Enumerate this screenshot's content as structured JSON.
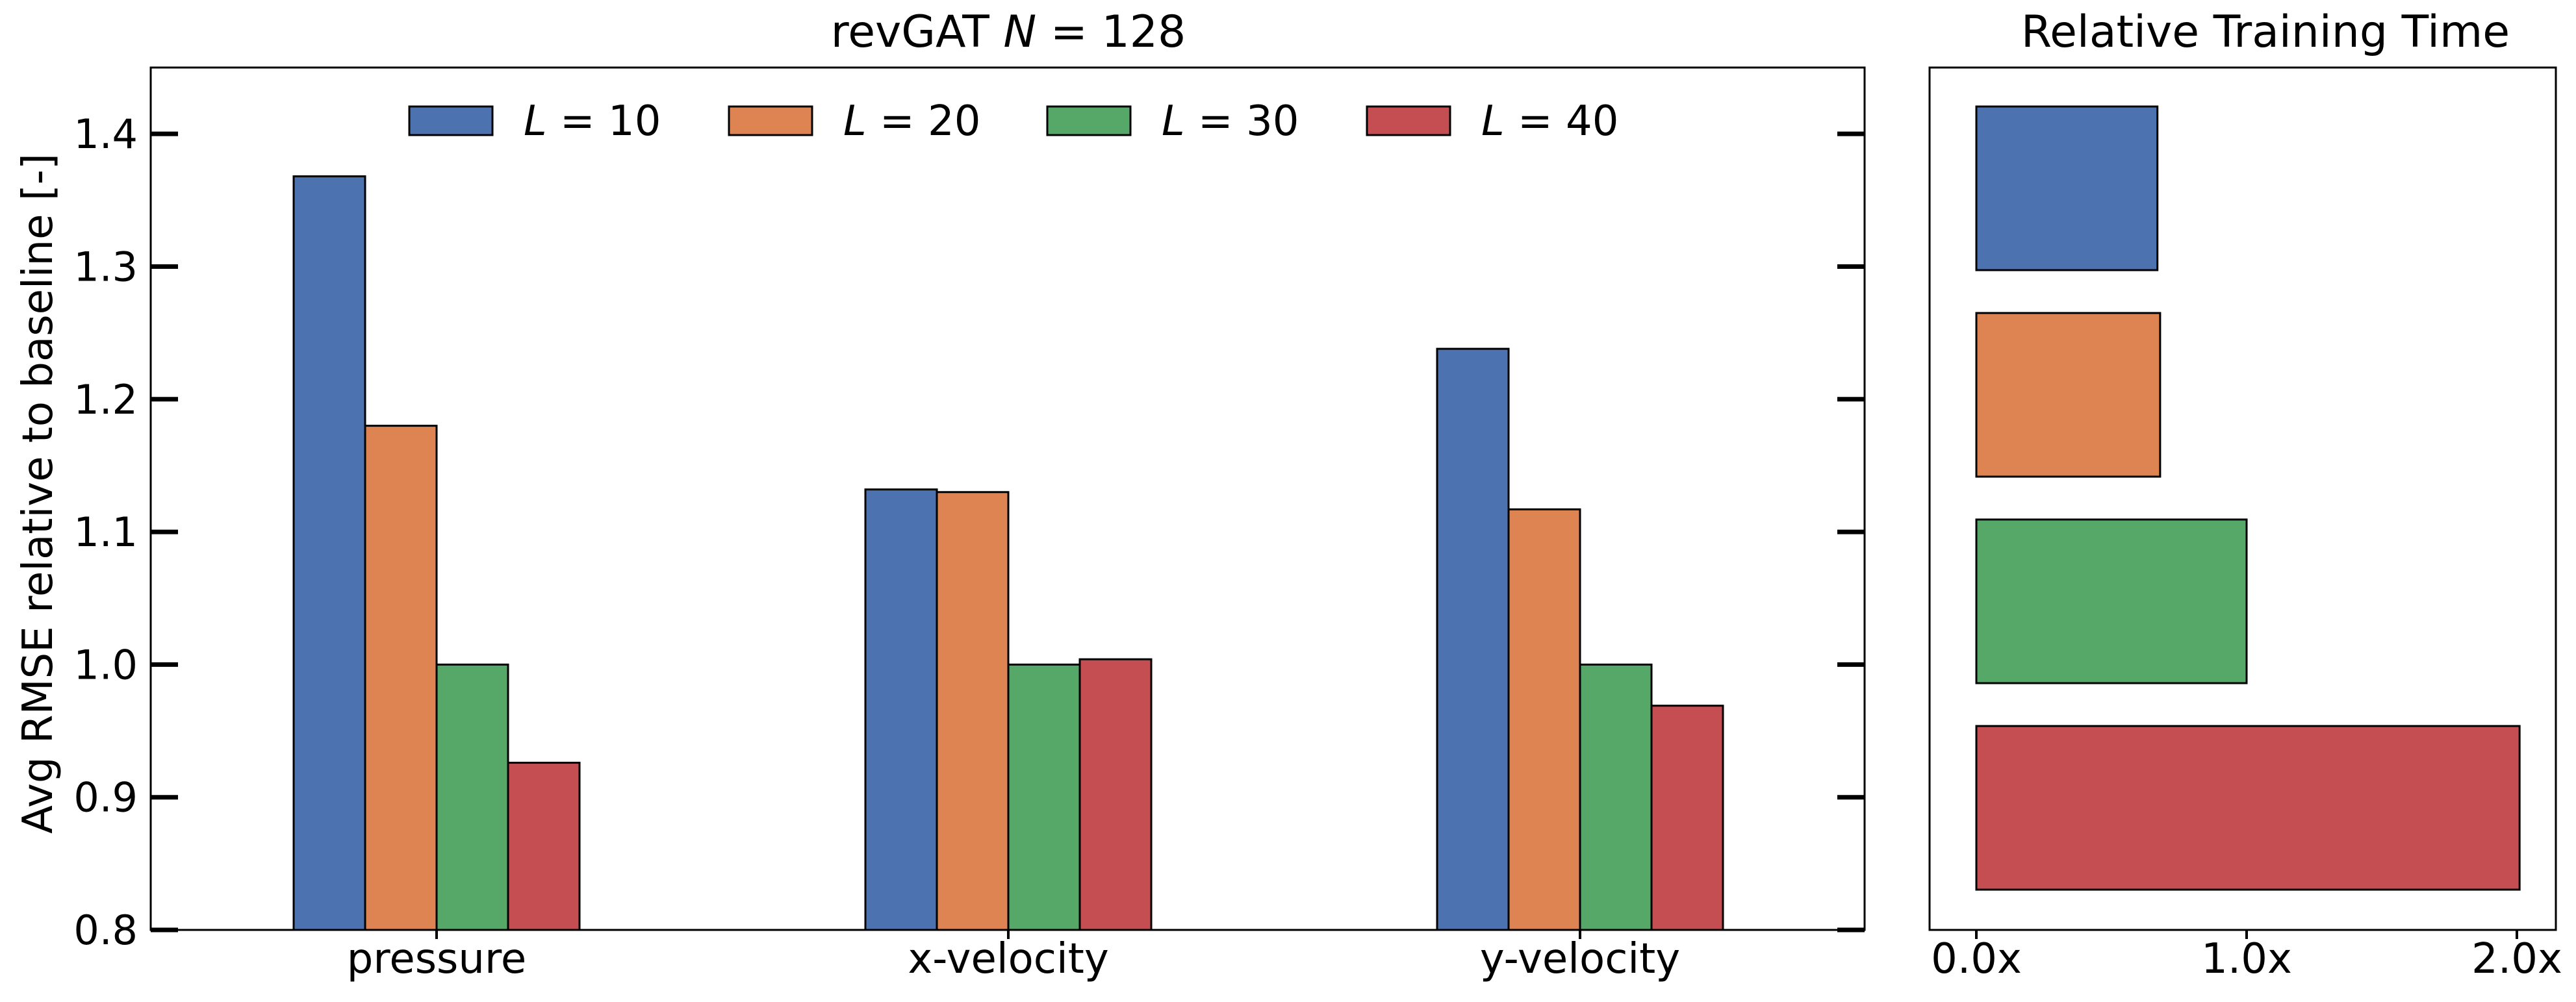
{
  "colors": {
    "L10": "#4c72b0",
    "L20": "#dd8452",
    "L30": "#55a868",
    "L40": "#c44e52"
  },
  "chart_data": [
    {
      "type": "bar",
      "title": "revGAT N = 128",
      "title_parts": {
        "text": "revGAT ",
        "italic": "N",
        "rest": " = 128"
      },
      "ylabel": "Avg RMSE relative to baseline [-]",
      "xlabel": "",
      "categories": [
        "pressure",
        "x-velocity",
        "y-velocity"
      ],
      "ylim": [
        0.8,
        1.45
      ],
      "yticks": [
        "0.8",
        "0.9",
        "1.0",
        "1.1",
        "1.2",
        "1.3",
        "1.4"
      ],
      "legend_position": "top",
      "series": [
        {
          "name": "L = 10",
          "name_italic": "L",
          "name_rest": " = 10",
          "color": "#4c72b0",
          "values": [
            1.368,
            1.132,
            1.238
          ]
        },
        {
          "name": "L = 20",
          "name_italic": "L",
          "name_rest": " = 20",
          "color": "#dd8452",
          "values": [
            1.18,
            1.13,
            1.117
          ]
        },
        {
          "name": "L = 30",
          "name_italic": "L",
          "name_rest": " = 30",
          "color": "#55a868",
          "values": [
            1.0,
            1.0,
            1.0
          ]
        },
        {
          "name": "L = 40",
          "name_italic": "L",
          "name_rest": " = 40",
          "color": "#c44e52",
          "values": [
            0.926,
            1.004,
            0.969
          ]
        }
      ]
    },
    {
      "type": "bar",
      "orientation": "horizontal",
      "title": "Relative Training Time",
      "xlim": [
        0,
        2.0
      ],
      "xticks": [
        "0.0x",
        "1.0x",
        "2.0x"
      ],
      "series": [
        {
          "name": "L = 10",
          "color": "#4c72b0",
          "value": 0.67
        },
        {
          "name": "L = 20",
          "color": "#dd8452",
          "value": 0.68
        },
        {
          "name": "L = 30",
          "color": "#55a868",
          "value": 1.0
        },
        {
          "name": "L = 40",
          "color": "#c44e52",
          "value": 2.01
        }
      ]
    }
  ]
}
